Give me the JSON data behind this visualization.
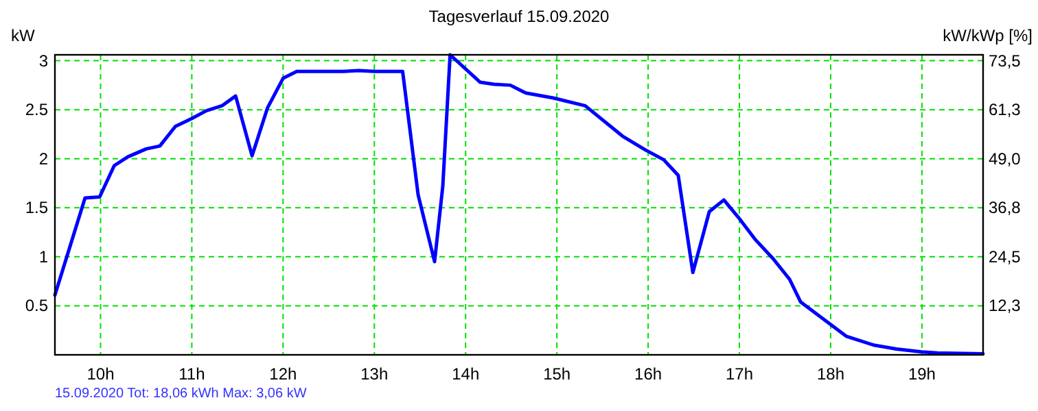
{
  "chart_data": {
    "type": "line",
    "title": "Tagesverlauf 15.09.2020",
    "ylabel": "kW",
    "y2label": "kW/kWp [%]",
    "annotations": [
      "15.09.2020 Tot: 18,06 kWh Max: 3,06 kW"
    ],
    "x": [
      9.5,
      9.83,
      9.99,
      10.15,
      10.3,
      10.5,
      10.65,
      10.82,
      11.0,
      11.16,
      11.33,
      11.48,
      11.66,
      11.83,
      12.0,
      12.15,
      12.66,
      12.83,
      13.0,
      13.31,
      13.48,
      13.66,
      13.75,
      13.83,
      14.16,
      14.31,
      14.49,
      14.66,
      14.96,
      15.31,
      15.72,
      15.97,
      16.17,
      16.33,
      16.49,
      16.67,
      16.83,
      16.99,
      17.17,
      17.37,
      17.55,
      17.67,
      17.97,
      18.17,
      18.47,
      18.72,
      19.0,
      19.17,
      19.67
    ],
    "series": [
      {
        "color": "#0000ff",
        "values": [
          0.61,
          1.6,
          1.61,
          1.93,
          2.02,
          2.1,
          2.13,
          2.33,
          2.41,
          2.49,
          2.54,
          2.64,
          2.03,
          2.52,
          2.82,
          2.89,
          2.89,
          2.9,
          2.89,
          2.89,
          1.63,
          0.95,
          1.72,
          3.06,
          2.78,
          2.76,
          2.75,
          2.67,
          2.62,
          2.54,
          2.23,
          2.09,
          1.99,
          1.83,
          0.84,
          1.46,
          1.58,
          1.4,
          1.18,
          0.98,
          0.77,
          0.54,
          0.33,
          0.19,
          0.1,
          0.06,
          0.03,
          0.02,
          0.01
        ]
      }
    ],
    "xlim": [
      9.5,
      19.67
    ],
    "ylim": [
      0,
      3.06
    ],
    "y2lim": [
      0,
      75
    ],
    "xticks": [
      {
        "value": 10,
        "label": "10h"
      },
      {
        "value": 11,
        "label": "11h"
      },
      {
        "value": 12,
        "label": "12h"
      },
      {
        "value": 13,
        "label": "13h"
      },
      {
        "value": 14,
        "label": "14h"
      },
      {
        "value": 15,
        "label": "15h"
      },
      {
        "value": 16,
        "label": "16h"
      },
      {
        "value": 17,
        "label": "17h"
      },
      {
        "value": 18,
        "label": "18h"
      },
      {
        "value": 19,
        "label": "19h"
      }
    ],
    "yticks": [
      0.5,
      1,
      1.5,
      2,
      2.5,
      3
    ],
    "y2ticks": [
      {
        "value": 12.3,
        "label": "12,3"
      },
      {
        "value": 24.5,
        "label": "24,5"
      },
      {
        "value": 36.8,
        "label": "36,8"
      },
      {
        "value": 49,
        "label": "49,0"
      },
      {
        "value": 61.3,
        "label": "61,3"
      },
      {
        "value": 73.5,
        "label": "73,5"
      }
    ],
    "grid": true,
    "marker": "none",
    "line_style": "solid"
  }
}
